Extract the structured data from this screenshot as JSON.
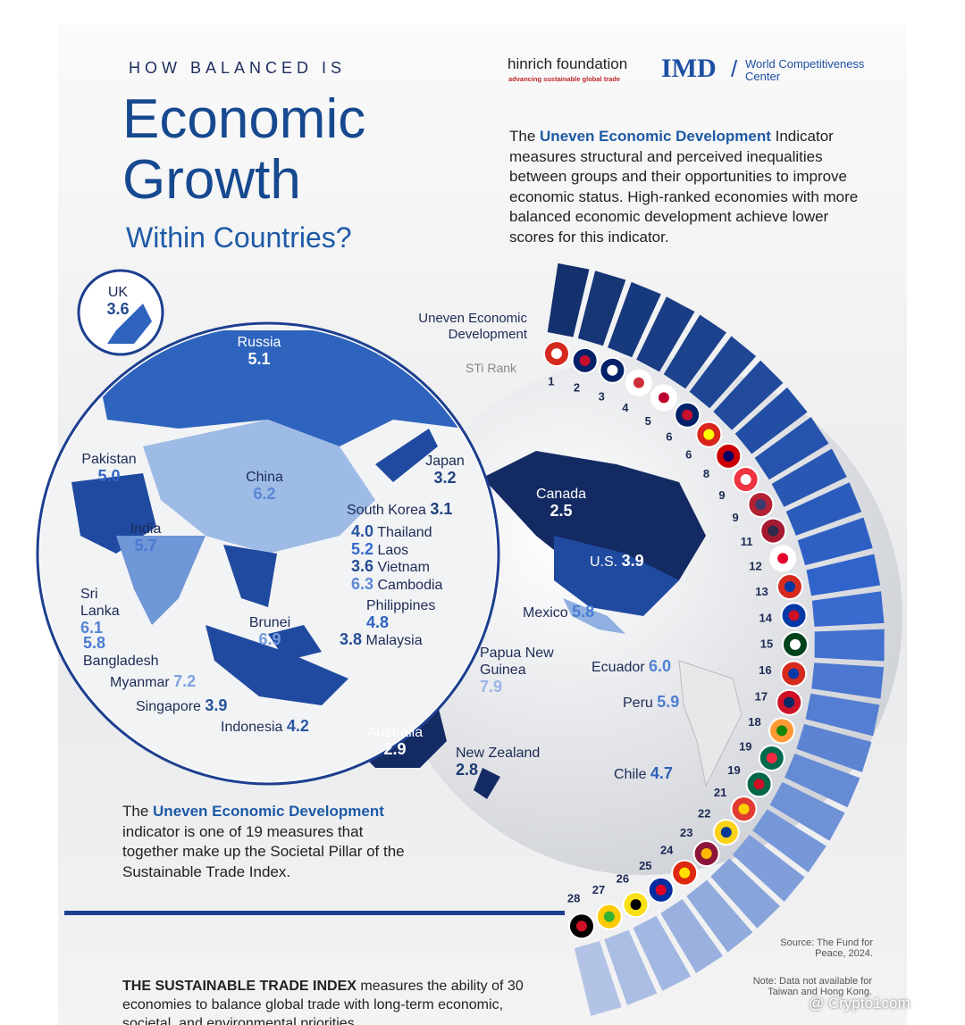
{
  "header": {
    "kicker": "HOW BALANCED IS",
    "title": [
      "Economic",
      "Growth"
    ],
    "subtitle": "Within Countries?"
  },
  "logos": {
    "hinrich": "hinrich foundation",
    "hinrich_tagline": "advancing sustainable global trade",
    "imd": "IMD",
    "imd_text": [
      "World Competitiveness",
      "Center"
    ]
  },
  "intro": {
    "before": "The",
    "highlight": "Uneven Economic Development",
    "after": "Indicator measures structural and perceived inequalities between groups and their opportunities to improve  economic status. High-ranked economies with more balanced economic development achieve lower scores for this indicator."
  },
  "economies": [
    {
      "name": "UK",
      "value": "3.6"
    },
    {
      "name": "Russia",
      "value": "5.1"
    },
    {
      "name": "Pakistan",
      "value": "5.0"
    },
    {
      "name": "China",
      "value": "6.2"
    },
    {
      "name": "Japan",
      "value": "3.2"
    },
    {
      "name": "South Korea",
      "value": "3.1"
    },
    {
      "name": "India",
      "value": "5.7"
    },
    {
      "name": "Thailand",
      "value": "4.0"
    },
    {
      "name": "Laos",
      "value": "5.2"
    },
    {
      "name": "Vietnam",
      "value": "3.6"
    },
    {
      "name": "Cambodia",
      "value": "6.3"
    },
    {
      "name": "Sri Lanka",
      "value": "6.1"
    },
    {
      "name": "Philippines",
      "value": "4.8"
    },
    {
      "name": "Brunei",
      "value": "6.9"
    },
    {
      "name": "Malaysia",
      "value": "3.8"
    },
    {
      "name": "Bangladesh",
      "value": "5.8"
    },
    {
      "name": "Myanmar",
      "value": "7.2"
    },
    {
      "name": "Singapore",
      "value": "3.9"
    },
    {
      "name": "Indonesia",
      "value": "4.2"
    },
    {
      "name": "Papua New Guinea",
      "value": "7.9"
    },
    {
      "name": "Australia",
      "value": "2.9"
    },
    {
      "name": "New Zealand",
      "value": "2.8"
    },
    {
      "name": "Canada",
      "value": "2.5"
    },
    {
      "name": "U.S.",
      "value": "3.9"
    },
    {
      "name": "Mexico",
      "value": "5.8"
    },
    {
      "name": "Ecuador",
      "value": "6.0"
    },
    {
      "name": "Peru",
      "value": "5.9"
    },
    {
      "name": "Chile",
      "value": "4.7"
    }
  ],
  "ranking": {
    "title": "Uneven Economic Development",
    "axis": "STi Rank",
    "ranks": [
      1,
      2,
      3,
      4,
      5,
      6,
      6,
      8,
      9,
      9,
      11,
      12,
      13,
      14,
      15,
      16,
      17,
      18,
      19,
      19,
      21,
      22,
      23,
      24,
      25,
      26,
      27,
      28
    ]
  },
  "pillar_note": {
    "before": "The",
    "highlight": "Uneven Economic Development",
    "after": "indicator is one of 19 measures that together make up the Societal Pillar of the Sustainable Trade Index."
  },
  "source": "Source: The Fund for Peace, 2024.",
  "note": "Note: Data not available for Taiwan and Hong Kong.",
  "footer": {
    "highlight": "THE SUSTAINABLE TRADE INDEX",
    "text": "measures the ability of 30 economies to balance global trade with long-term economic, societal, and environmental priorities."
  },
  "watermark": "@ Crypto1com"
}
